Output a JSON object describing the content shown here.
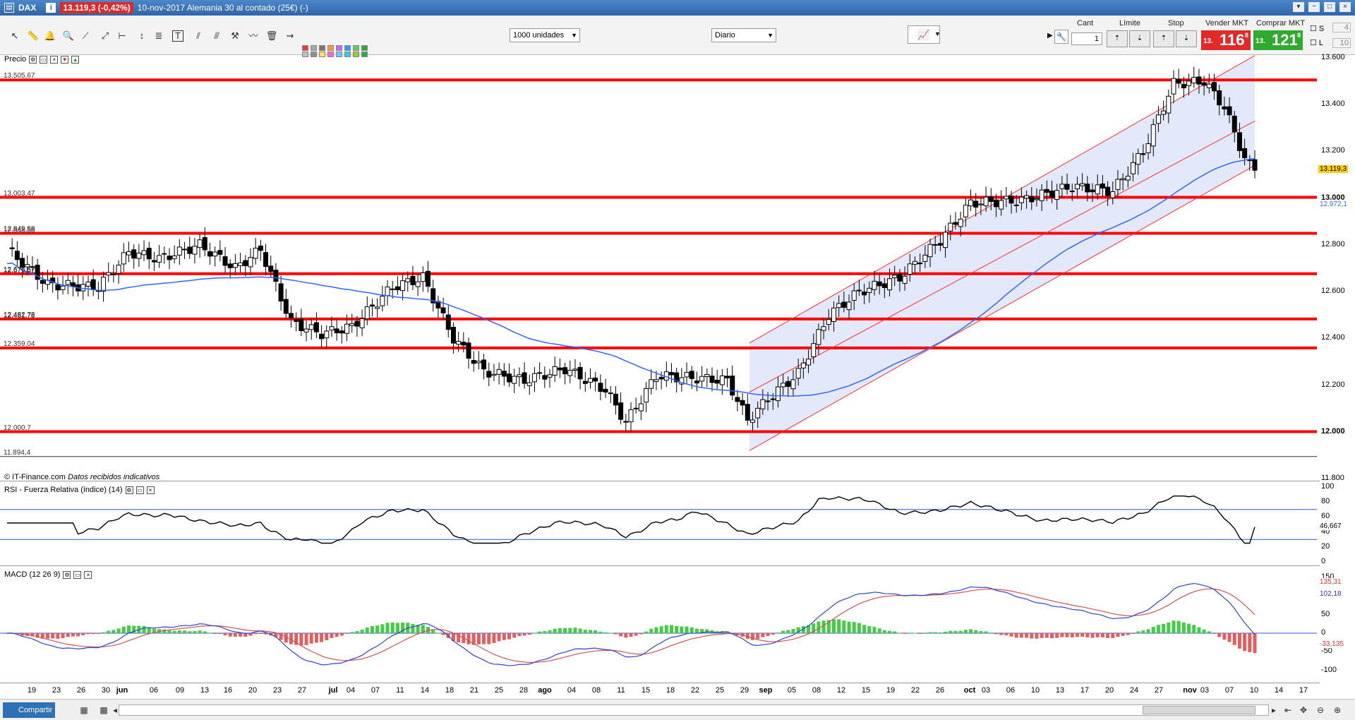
{
  "window": {
    "symbol": "DAX",
    "price_badge": "13.119,3 (-0,42%)",
    "description": "10-nov-2017  Alemania 30 al contado (25€) (-)",
    "buttons": [
      "▾",
      "−",
      "□",
      "×"
    ]
  },
  "toolbar": {
    "units_select": "1000 unidades",
    "period_select": "Diario",
    "labels": {
      "cant": "Cant",
      "limite": "Límite",
      "stop": "Stop",
      "vender": "Vender MKT",
      "comprar": "Comprar MKT"
    },
    "quantity": "1",
    "sell": {
      "small": "13.",
      "big": "116",
      "sup": "8",
      "color": "#e02a2a"
    },
    "buy": {
      "small": "13.",
      "big": "121",
      "sup": "8",
      "color": "#2faa2f"
    },
    "side_s": "S",
    "side_l": "L",
    "side_s_val": "4",
    "side_l_val": "10",
    "swatch_colors": [
      "#ff3333",
      "#c0c0c0",
      "#a8a8a8",
      "#909090",
      "#787878",
      "#ffe066",
      "#ff9933",
      "#ff66cc",
      "#cc66ff",
      "#66ccff",
      "#3399ff",
      "#33cccc",
      "#66cc66",
      "#99cc33",
      "#33aa33",
      "#22aa55"
    ]
  },
  "price_panel": {
    "title": "Precio",
    "source_note": "© IT-Finance.com",
    "source_note_italic": "Datos recibidos indicativos",
    "y_ticks": [
      "13.600",
      "13.400",
      "13.200",
      "13.000",
      "12.800",
      "12.600",
      "12.400",
      "12.200",
      "12.000",
      "11.800"
    ],
    "current_price_tag": "13.119,3",
    "ma_tag": "12.972,1",
    "level_labels": [
      "13.505,67",
      "13.003,47",
      "12.849,58",
      "12.848,58",
      "12.676,57",
      "12.676,57",
      "12.482,78",
      "12.481,78",
      "12.359,04",
      "12.000,7",
      "11.894,4"
    ],
    "line_color": "#ff0000",
    "ma_color": "#3366ff"
  },
  "rsi_panel": {
    "title": "RSI - Fuerza Relativa (índice) (14)",
    "y_ticks": [
      "100",
      "80",
      "60",
      "40",
      "20",
      "0"
    ],
    "value_tag": "46,667"
  },
  "macd_panel": {
    "title": "MACD (12 26 9)",
    "y_ticks": [
      "150",
      "100",
      "50",
      "0",
      "-50",
      "-100"
    ],
    "tag_signal": "135,31",
    "tag_macd": "102,18",
    "tag_hist": "-33,135"
  },
  "x_axis": {
    "labels": [
      "19",
      "23",
      "26",
      "30",
      "jun",
      "06",
      "09",
      "13",
      "16",
      "20",
      "23",
      "27",
      "jul",
      "04",
      "07",
      "11",
      "14",
      "18",
      "21",
      "25",
      "28",
      "ago",
      "04",
      "08",
      "11",
      "15",
      "18",
      "22",
      "25",
      "29",
      "sep",
      "05",
      "08",
      "12",
      "15",
      "19",
      "22",
      "26",
      "oct",
      "03",
      "06",
      "10",
      "13",
      "17",
      "20",
      "24",
      "27",
      "nov",
      "03",
      "07",
      "10",
      "14",
      "17"
    ]
  },
  "bottom": {
    "share_label": "Compartir"
  },
  "chart_data": {
    "type": "candlestick",
    "title": "DAX",
    "xlabel": "",
    "ylabel": "",
    "ylim": [
      11800,
      13600
    ],
    "horizontal_levels": [
      13505.67,
      13003.47,
      12849.58,
      12676.57,
      12482.78,
      12359.04,
      12000.7,
      11894.4
    ],
    "last_price": 13119.3,
    "ma_last": 12972.1,
    "rsi_last": 46.667,
    "macd": {
      "signal_last": 135.31,
      "macd_last": 102.18,
      "hist_last": -33.135
    }
  }
}
